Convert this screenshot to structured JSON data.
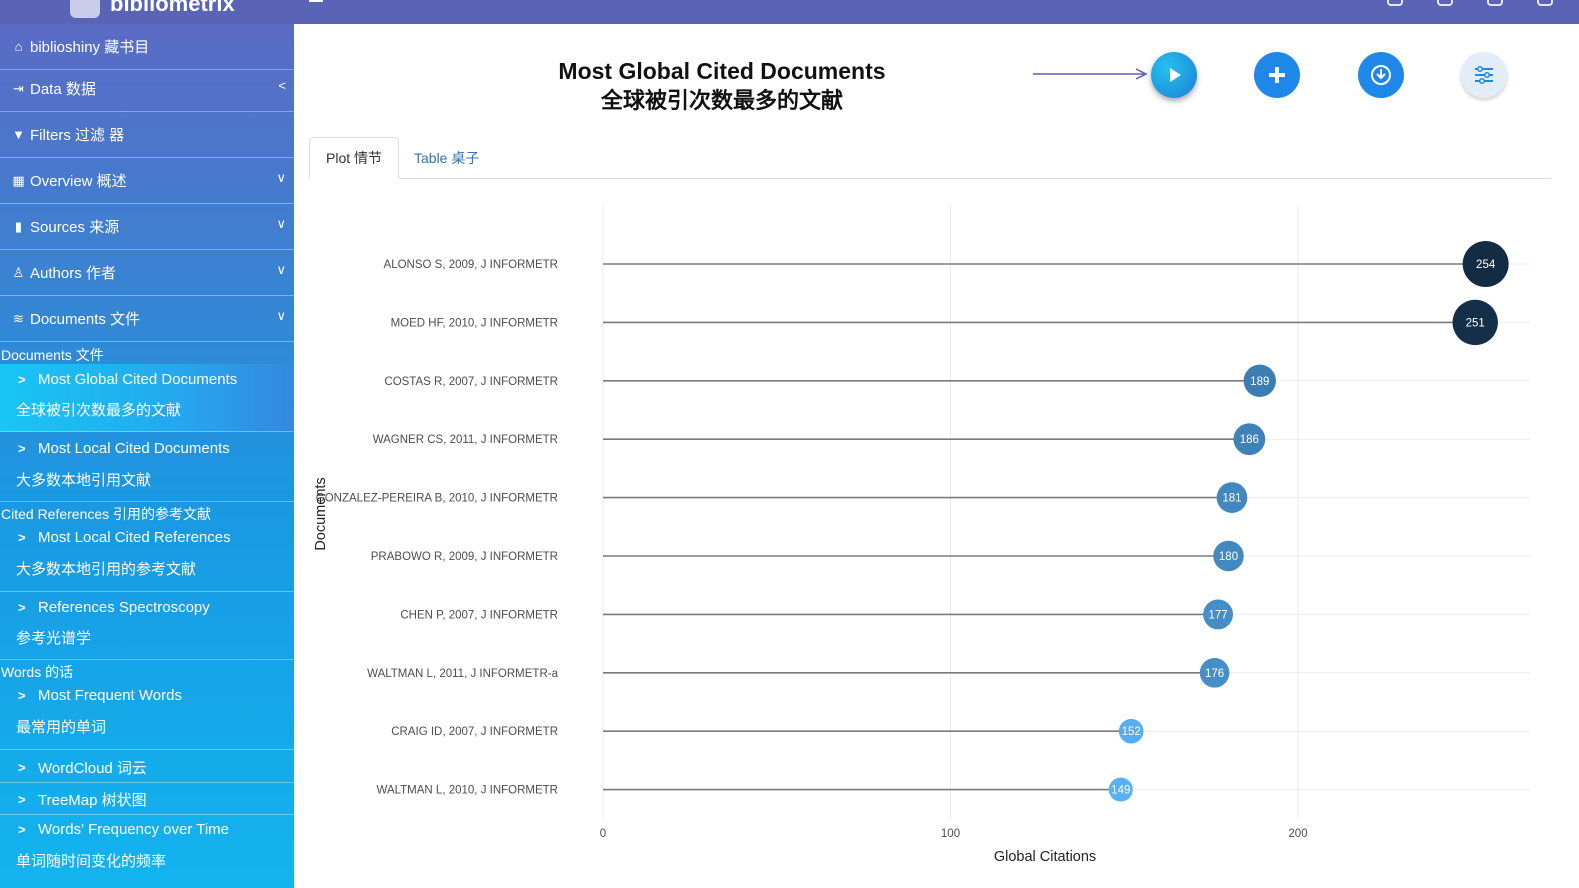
{
  "header": {
    "brand": "bibliometrix"
  },
  "sidebar": {
    "items": [
      {
        "label": "biblioshiny 藏书目",
        "icon": "home-icon"
      },
      {
        "label": "Data 数据",
        "icon": "import-icon"
      },
      {
        "label": "Filters 过滤 器",
        "icon": "filter-icon"
      },
      {
        "label": "Overview 概述",
        "icon": "table-icon"
      },
      {
        "label": "Sources 来源",
        "icon": "book-icon"
      },
      {
        "label": "Authors 作者",
        "icon": "user-icon"
      },
      {
        "label": "Documents 文件",
        "icon": "layers-icon"
      }
    ],
    "sections": {
      "documents": "Documents  文件",
      "cited_references": "Cited References  引用的参考文献",
      "words": "Words  的话"
    },
    "subitems": [
      {
        "en": "Most Global Cited Documents",
        "zh": "全球被引次数最多的文献"
      },
      {
        "en": "Most Local Cited Documents",
        "zh": "大多数本地引用文献"
      },
      {
        "en": "Most Local Cited References",
        "zh": "大多数本地引用的参考文献"
      },
      {
        "en": "References Spectroscopy",
        "zh": "参考光谱学"
      },
      {
        "en": "Most Frequent Words",
        "zh": "最常用的单词"
      },
      {
        "en": "WordCloud  词云",
        "zh": ""
      },
      {
        "en": "TreeMap  树状图",
        "zh": ""
      },
      {
        "en": "Words' Frequency over Time",
        "zh": "单词随时间变化的频率"
      }
    ]
  },
  "main": {
    "title_en": "Most Global Cited Documents",
    "title_zh": "全球被引次数最多的文献",
    "tabs": [
      {
        "label": "Plot 情节"
      },
      {
        "label": "Table 桌子"
      }
    ],
    "buttons": [
      "play-icon",
      "plus-icon",
      "download-icon",
      "sliders-icon"
    ]
  },
  "chart_data": {
    "type": "scatter",
    "title": "",
    "xlabel": "Global Citations",
    "ylabel": "Documents",
    "xlim": [
      0,
      260
    ],
    "xticks": [
      0,
      100,
      200
    ],
    "grid": true,
    "legend": "none",
    "colors": {
      "low": "#56b1f7",
      "high": "#132b43"
    },
    "points": [
      {
        "label": "ALONSO S, 2009, J INFORMETR",
        "value": 254
      },
      {
        "label": "MOED HF, 2010, J INFORMETR",
        "value": 251
      },
      {
        "label": "COSTAS R, 2007, J INFORMETR",
        "value": 189
      },
      {
        "label": "WAGNER CS, 2011, J INFORMETR",
        "value": 186
      },
      {
        "label": "GONZALEZ-PEREIRA B, 2010, J INFORMETR",
        "value": 181
      },
      {
        "label": "PRABOWO R, 2009, J INFORMETR",
        "value": 180
      },
      {
        "label": "CHEN P, 2007, J INFORMETR",
        "value": 177
      },
      {
        "label": "WALTMAN L, 2011, J INFORMETR-a",
        "value": 176
      },
      {
        "label": "CRAIG ID, 2007, J INFORMETR",
        "value": 152
      },
      {
        "label": "WALTMAN L, 2010, J INFORMETR",
        "value": 149
      }
    ]
  }
}
